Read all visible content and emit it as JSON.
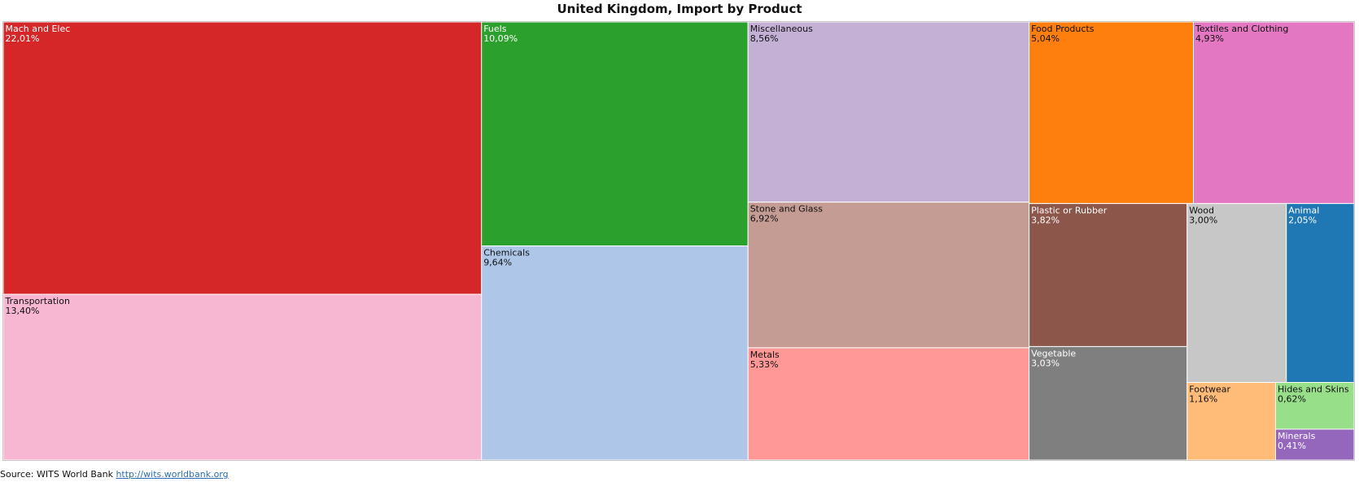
{
  "chart": {
    "title": "United Kingdom, Import by Product"
  },
  "source": {
    "prefix": "Source: WITS World Bank",
    "link_text": "http://wits.worldbank.org"
  },
  "chart_data": {
    "type": "treemap",
    "title": "United Kingdom, Import by Product",
    "unit": "percent of imports",
    "items": [
      {
        "name": "Mach and Elec",
        "value": 22.01,
        "label": "22,01%",
        "color": "#d62728",
        "text_color": "#ffffff"
      },
      {
        "name": "Transportation",
        "value": 13.4,
        "label": "13,40%",
        "color": "#f7b6d2",
        "text_color": "#111111"
      },
      {
        "name": "Fuels",
        "value": 10.09,
        "label": "10,09%",
        "color": "#2ca02c",
        "text_color": "#ffffff"
      },
      {
        "name": "Chemicals",
        "value": 9.64,
        "label": "9,64%",
        "color": "#aec7e8",
        "text_color": "#111111"
      },
      {
        "name": "Miscellaneous",
        "value": 8.56,
        "label": "8,56%",
        "color": "#c5b0d5",
        "text_color": "#111111"
      },
      {
        "name": "Stone and Glass",
        "value": 6.92,
        "label": "6,92%",
        "color": "#c49c94",
        "text_color": "#111111"
      },
      {
        "name": "Metals",
        "value": 5.33,
        "label": "5,33%",
        "color": "#ff9896",
        "text_color": "#111111"
      },
      {
        "name": "Food Products",
        "value": 5.04,
        "label": "5,04%",
        "color": "#ff7f0e",
        "text_color": "#111111"
      },
      {
        "name": "Textiles and Clothing",
        "value": 4.93,
        "label": "4,93%",
        "color": "#e377c2",
        "text_color": "#111111"
      },
      {
        "name": "Plastic or Rubber",
        "value": 3.82,
        "label": "3,82%",
        "color": "#8c564b",
        "text_color": "#ffffff"
      },
      {
        "name": "Vegetable",
        "value": 3.03,
        "label": "3,03%",
        "color": "#7f7f7f",
        "text_color": "#ffffff"
      },
      {
        "name": "Wood",
        "value": 3.0,
        "label": "3,00%",
        "color": "#c7c7c7",
        "text_color": "#111111"
      },
      {
        "name": "Animal",
        "value": 2.05,
        "label": "2,05%",
        "color": "#1f77b4",
        "text_color": "#ffffff"
      },
      {
        "name": "Footwear",
        "value": 1.16,
        "label": "1,16%",
        "color": "#ffbb78",
        "text_color": "#111111"
      },
      {
        "name": "Hides and Skins",
        "value": 0.62,
        "label": "0,62%",
        "color": "#98df8a",
        "text_color": "#111111"
      },
      {
        "name": "Minerals",
        "value": 0.41,
        "label": "0,41%",
        "color": "#9467bd",
        "text_color": "#ffffff"
      }
    ]
  }
}
